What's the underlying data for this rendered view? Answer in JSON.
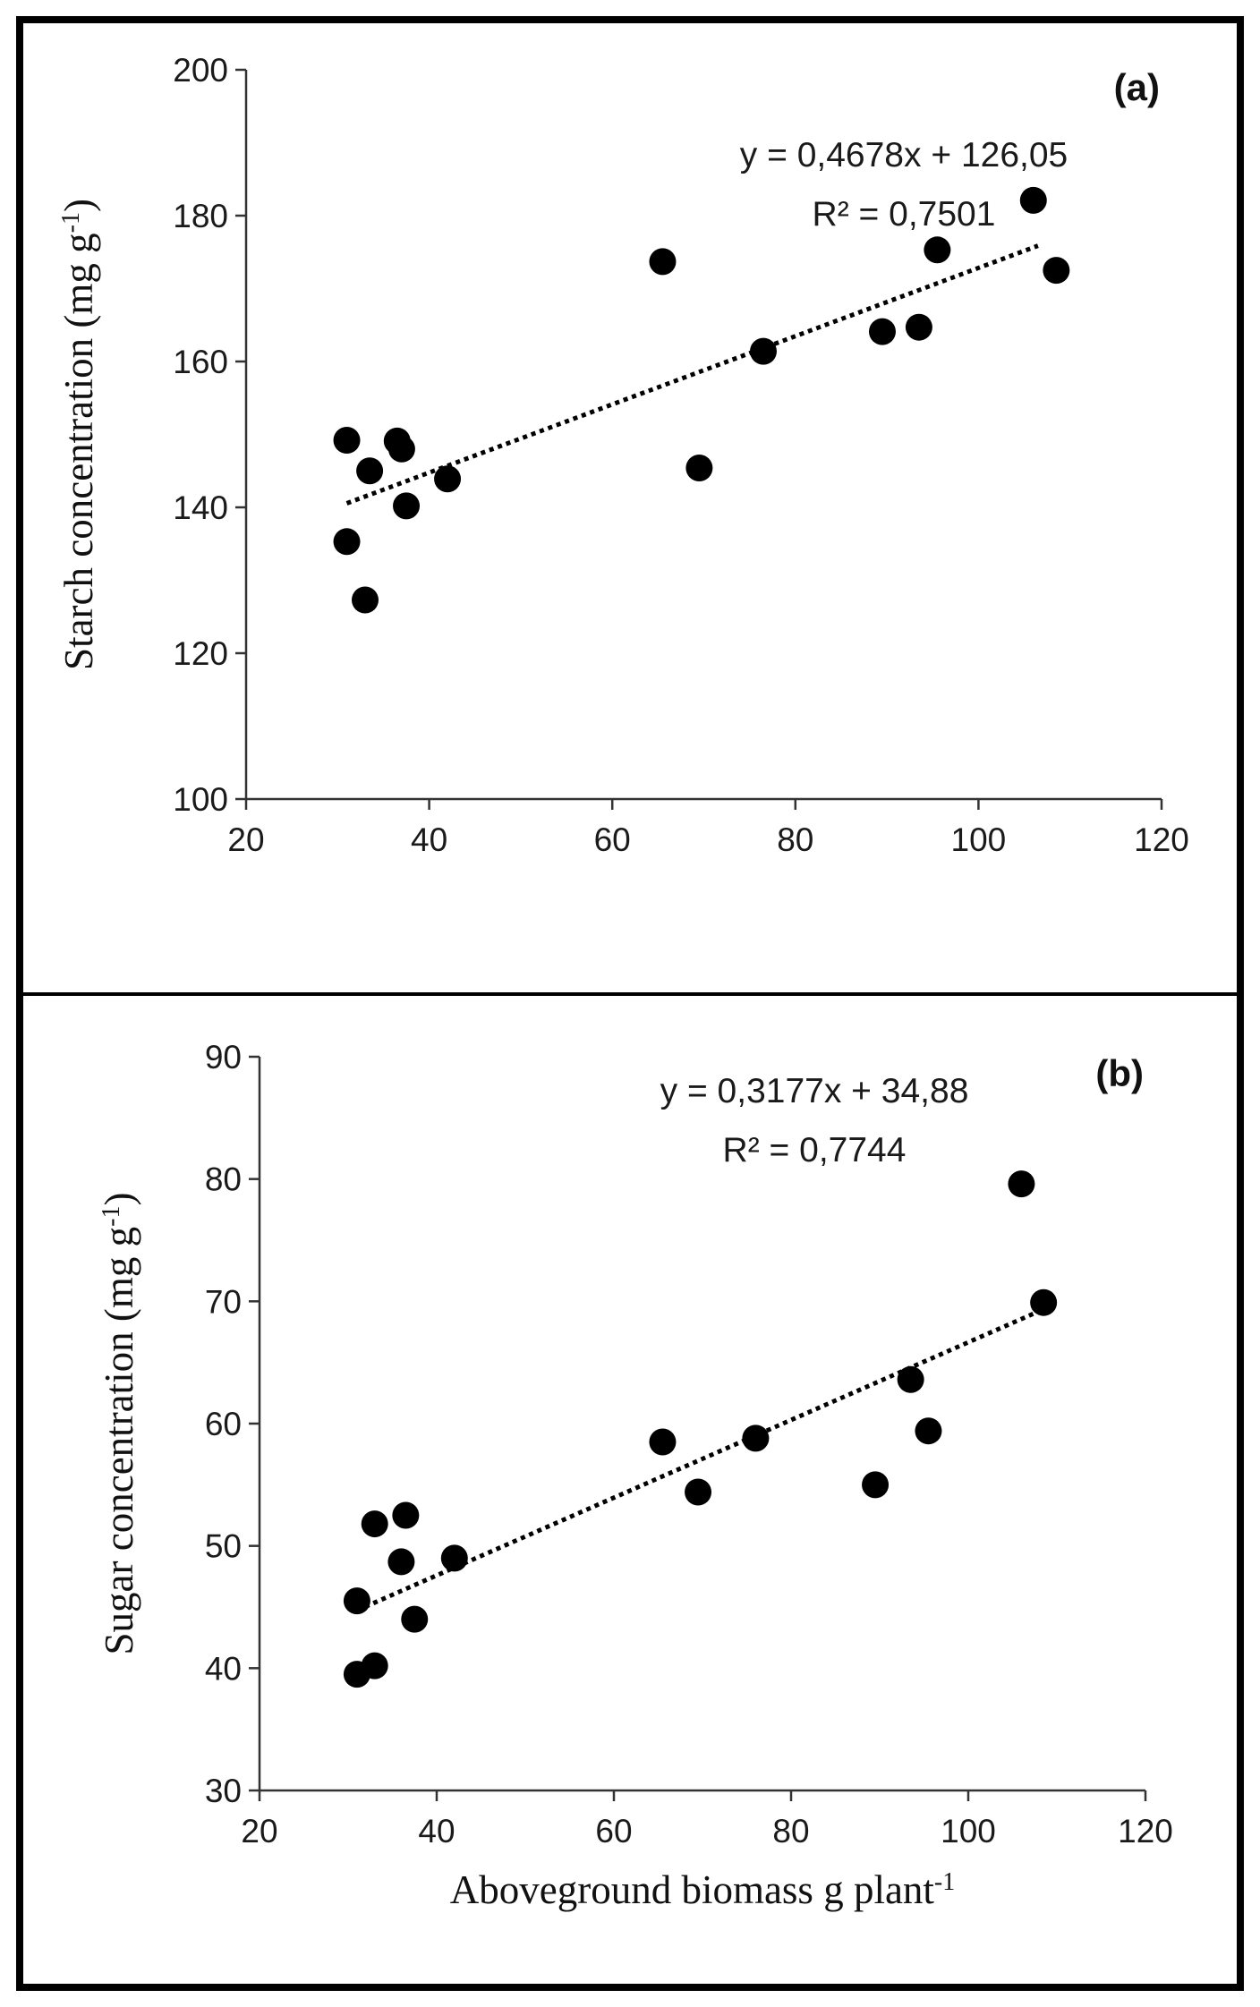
{
  "chart_data": [
    {
      "type": "scatter",
      "panel_label": "(a)",
      "xlabel": "",
      "ylabel": {
        "text": "Starch concentration (mg g",
        "sup": "-1",
        "end": ")"
      },
      "xlim": [
        20,
        120
      ],
      "ylim": [
        100,
        200
      ],
      "xticks": [
        "20",
        "40",
        "60",
        "80",
        "100",
        "120"
      ],
      "yticks": [
        "100",
        "120",
        "140",
        "160",
        "180",
        "200"
      ],
      "equation": "y = 0,4678x + 126,05",
      "r_squared": "R² = 0,7501",
      "trendline": {
        "slope": 0.4678,
        "intercept": 126.05,
        "x_range": [
          31,
          106.5
        ]
      },
      "points": [
        {
          "x": 31.0,
          "y": 149.2
        },
        {
          "x": 31.0,
          "y": 135.3
        },
        {
          "x": 33.0,
          "y": 127.3
        },
        {
          "x": 33.5,
          "y": 145.0
        },
        {
          "x": 36.5,
          "y": 149.1
        },
        {
          "x": 37.0,
          "y": 148.0
        },
        {
          "x": 37.5,
          "y": 140.2
        },
        {
          "x": 42.0,
          "y": 143.9
        },
        {
          "x": 65.5,
          "y": 173.7
        },
        {
          "x": 69.5,
          "y": 145.4
        },
        {
          "x": 76.5,
          "y": 161.4
        },
        {
          "x": 89.5,
          "y": 164.1
        },
        {
          "x": 93.5,
          "y": 164.7
        },
        {
          "x": 95.5,
          "y": 175.3
        },
        {
          "x": 106.0,
          "y": 182.1
        },
        {
          "x": 108.5,
          "y": 172.5
        }
      ]
    },
    {
      "type": "scatter",
      "panel_label": "(b)",
      "xlabel": {
        "text": "Aboveground biomass g plant",
        "sup": "-1",
        "end": ""
      },
      "ylabel": {
        "text": "Sugar concentration (mg g",
        "sup": "-1",
        "end": ")"
      },
      "xlim": [
        20,
        120
      ],
      "ylim": [
        30,
        90
      ],
      "xticks": [
        "20",
        "40",
        "60",
        "80",
        "100",
        "120"
      ],
      "yticks": [
        "30",
        "40",
        "50",
        "60",
        "70",
        "80",
        "90"
      ],
      "equation": "y = 0,3177x + 34,88",
      "r_squared": "R² = 0,7744",
      "trendline": {
        "slope": 0.3177,
        "intercept": 34.88,
        "x_range": [
          31,
          108
        ]
      },
      "points": [
        {
          "x": 31.0,
          "y": 45.5
        },
        {
          "x": 31.0,
          "y": 39.5
        },
        {
          "x": 33.0,
          "y": 40.2
        },
        {
          "x": 33.0,
          "y": 51.8
        },
        {
          "x": 36.0,
          "y": 48.7
        },
        {
          "x": 36.5,
          "y": 52.5
        },
        {
          "x": 37.5,
          "y": 44.0
        },
        {
          "x": 42.0,
          "y": 49.0
        },
        {
          "x": 65.5,
          "y": 58.5
        },
        {
          "x": 69.5,
          "y": 54.4
        },
        {
          "x": 76.0,
          "y": 58.8
        },
        {
          "x": 89.5,
          "y": 55.0
        },
        {
          "x": 93.5,
          "y": 63.6
        },
        {
          "x": 95.5,
          "y": 59.4
        },
        {
          "x": 106.0,
          "y": 79.6
        },
        {
          "x": 108.5,
          "y": 69.9
        }
      ]
    }
  ]
}
